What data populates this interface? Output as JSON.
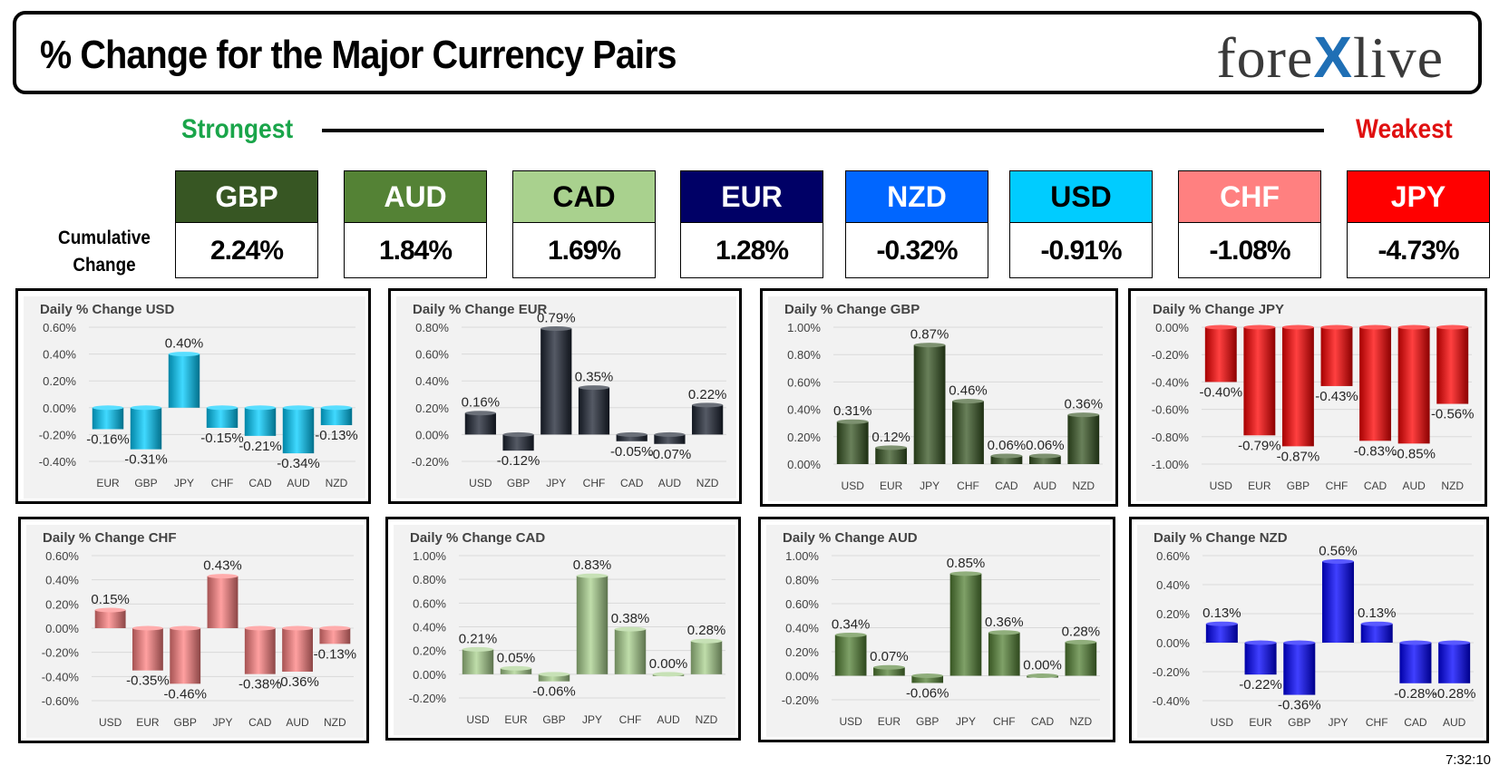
{
  "header": {
    "title": "% Change for the Major Currency Pairs",
    "logo_pre": "fore",
    "logo_x": "X",
    "logo_post": "live"
  },
  "ranking": {
    "strongest_label": "Strongest",
    "weakest_label": "Weakest",
    "cumulative_label_line1": "Cumulative",
    "cumulative_label_line2": "Change",
    "currencies": [
      {
        "code": "GBP",
        "value": "2.24%",
        "bg": "#375623",
        "fg": "#ffffff"
      },
      {
        "code": "AUD",
        "value": "1.84%",
        "bg": "#548235",
        "fg": "#ffffff"
      },
      {
        "code": "CAD",
        "value": "1.69%",
        "bg": "#a9d18e",
        "fg": "#000000"
      },
      {
        "code": "EUR",
        "value": "1.28%",
        "bg": "#000066",
        "fg": "#ffffff"
      },
      {
        "code": "NZD",
        "value": "-0.32%",
        "bg": "#0066ff",
        "fg": "#ffffff"
      },
      {
        "code": "USD",
        "value": "-0.91%",
        "bg": "#00ccff",
        "fg": "#000000"
      },
      {
        "code": "CHF",
        "value": "-1.08%",
        "bg": "#ff8080",
        "fg": "#ffffff"
      },
      {
        "code": "JPY",
        "value": "-4.73%",
        "bg": "#ff0000",
        "fg": "#ffffff"
      }
    ]
  },
  "timestamp": "7:32:10",
  "chart_data": [
    {
      "type": "bar",
      "title": "Daily % Change USD",
      "color": "#00ccff",
      "categories": [
        "EUR",
        "GBP",
        "JPY",
        "CHF",
        "CAD",
        "AUD",
        "NZD"
      ],
      "values": [
        -0.16,
        -0.31,
        0.4,
        -0.15,
        -0.21,
        -0.34,
        -0.13
      ],
      "ylim": [
        -0.4,
        0.6
      ],
      "ticks": [
        0.6,
        0.4,
        0.2,
        0.0,
        -0.2,
        -0.4
      ]
    },
    {
      "type": "bar",
      "title": "Daily % Change EUR",
      "color": "#1c2331",
      "categories": [
        "USD",
        "GBP",
        "JPY",
        "CHF",
        "CAD",
        "AUD",
        "NZD"
      ],
      "values": [
        0.16,
        -0.12,
        0.79,
        0.35,
        -0.05,
        -0.07,
        0.22
      ],
      "ylim": [
        -0.2,
        0.8
      ],
      "ticks": [
        0.8,
        0.6,
        0.4,
        0.2,
        0.0,
        -0.2
      ]
    },
    {
      "type": "bar",
      "title": "Daily % Change GBP",
      "color": "#375623",
      "categories": [
        "USD",
        "EUR",
        "JPY",
        "CHF",
        "CAD",
        "AUD",
        "NZD"
      ],
      "values": [
        0.31,
        0.12,
        0.87,
        0.46,
        0.06,
        0.06,
        0.36
      ],
      "ylim": [
        0.0,
        1.0
      ],
      "ticks": [
        1.0,
        0.8,
        0.6,
        0.4,
        0.2,
        0.0
      ]
    },
    {
      "type": "bar",
      "title": "Daily % Change JPY",
      "color": "#ff0000",
      "categories": [
        "USD",
        "EUR",
        "GBP",
        "CHF",
        "CAD",
        "AUD",
        "NZD"
      ],
      "values": [
        -0.4,
        -0.79,
        -0.87,
        -0.43,
        -0.83,
        -0.85,
        -0.56
      ],
      "ylim": [
        -1.0,
        0.0
      ],
      "ticks": [
        0.0,
        -0.2,
        -0.4,
        -0.6,
        -0.8,
        -1.0
      ]
    },
    {
      "type": "bar",
      "title": "Daily % Change CHF",
      "color": "#ff8080",
      "categories": [
        "USD",
        "EUR",
        "GBP",
        "JPY",
        "CAD",
        "AUD",
        "NZD"
      ],
      "values": [
        0.15,
        -0.35,
        -0.46,
        0.43,
        -0.38,
        -0.36,
        -0.13
      ],
      "ylim": [
        -0.6,
        0.6
      ],
      "ticks": [
        0.6,
        0.4,
        0.2,
        0.0,
        -0.2,
        -0.4,
        -0.6
      ]
    },
    {
      "type": "bar",
      "title": "Daily % Change CAD",
      "color": "#a9d18e",
      "categories": [
        "USD",
        "EUR",
        "GBP",
        "JPY",
        "CHF",
        "AUD",
        "NZD"
      ],
      "values": [
        0.21,
        0.05,
        -0.06,
        0.83,
        0.38,
        0.0,
        0.28
      ],
      "ylim": [
        -0.2,
        1.0
      ],
      "ticks": [
        1.0,
        0.8,
        0.6,
        0.4,
        0.2,
        0.0,
        -0.2
      ]
    },
    {
      "type": "bar",
      "title": "Daily % Change AUD",
      "color": "#548235",
      "categories": [
        "USD",
        "EUR",
        "GBP",
        "JPY",
        "CHF",
        "CAD",
        "NZD"
      ],
      "values": [
        0.34,
        0.07,
        -0.06,
        0.85,
        0.36,
        0.0,
        0.28
      ],
      "ylim": [
        -0.2,
        1.0
      ],
      "ticks": [
        1.0,
        0.8,
        0.6,
        0.4,
        0.2,
        0.0,
        -0.2
      ]
    },
    {
      "type": "bar",
      "title": "Daily % Change NZD",
      "color": "#0000ff",
      "categories": [
        "USD",
        "EUR",
        "GBP",
        "JPY",
        "CHF",
        "CAD",
        "AUD"
      ],
      "values": [
        0.13,
        -0.22,
        -0.36,
        0.56,
        0.13,
        -0.28,
        -0.28
      ],
      "ylim": [
        -0.4,
        0.6
      ],
      "ticks": [
        0.6,
        0.4,
        0.2,
        0.0,
        -0.2,
        -0.4
      ]
    }
  ]
}
